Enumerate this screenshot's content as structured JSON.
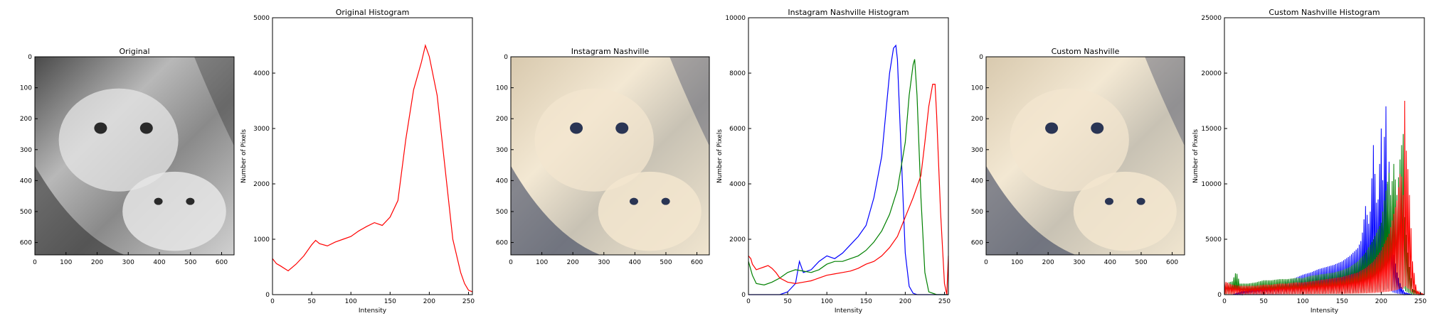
{
  "colors": {
    "blue": "#0000ff",
    "green": "#008000",
    "red": "#ff0000",
    "gray": "#bbbbbb",
    "dark": "#2a2a2a",
    "sepia_light": "#f3e6cf",
    "sepia_dark": "#2a3554"
  },
  "panels": [
    {
      "kind": "image",
      "title": "Original",
      "tone": "gray",
      "xticks": [
        "0",
        "100",
        "200",
        "300",
        "400",
        "500",
        "600"
      ],
      "yticks": [
        "0",
        "100",
        "200",
        "300",
        "400",
        "500",
        "600"
      ]
    },
    {
      "kind": "chart",
      "chart_ref": 0
    },
    {
      "kind": "image",
      "title": "Instagram Nashville",
      "tone": "sepia",
      "xticks": [
        "0",
        "100",
        "200",
        "300",
        "400",
        "500",
        "600"
      ],
      "yticks": [
        "0",
        "100",
        "200",
        "300",
        "400",
        "500",
        "600"
      ]
    },
    {
      "kind": "chart",
      "chart_ref": 1
    },
    {
      "kind": "image",
      "title": "Custom Nashville",
      "tone": "sepia",
      "xticks": [
        "0",
        "100",
        "200",
        "300",
        "400",
        "500",
        "600"
      ],
      "yticks": [
        "0",
        "100",
        "200",
        "300",
        "400",
        "500",
        "600"
      ]
    },
    {
      "kind": "chart",
      "chart_ref": 2
    }
  ],
  "chart_data": [
    {
      "type": "line",
      "title": "Original Histogram",
      "xlabel": "Intensity",
      "ylabel": "Number of Pixels",
      "xlim": [
        0,
        255
      ],
      "ylim": [
        0,
        5000
      ],
      "xticks": [
        0,
        50,
        100,
        150,
        200,
        250
      ],
      "yticks": [
        0,
        1000,
        2000,
        3000,
        4000,
        5000
      ],
      "series": [
        {
          "color": "red",
          "x": [
            0,
            5,
            10,
            20,
            30,
            40,
            50,
            55,
            60,
            70,
            80,
            90,
            100,
            110,
            120,
            130,
            140,
            150,
            160,
            170,
            180,
            190,
            195,
            200,
            210,
            220,
            230,
            240,
            245,
            250,
            255
          ],
          "y": [
            650,
            560,
            520,
            430,
            550,
            700,
            900,
            980,
            920,
            880,
            950,
            1000,
            1050,
            1150,
            1230,
            1300,
            1250,
            1400,
            1700,
            2800,
            3700,
            4200,
            4500,
            4300,
            3600,
            2300,
            1000,
            400,
            200,
            80,
            50
          ]
        }
      ]
    },
    {
      "type": "line",
      "title": "Instagram Nashville Histogram",
      "xlabel": "Intensity",
      "ylabel": "Number of Pixels",
      "xlim": [
        0,
        255
      ],
      "ylim": [
        0,
        10000
      ],
      "xticks": [
        0,
        50,
        100,
        150,
        200,
        250
      ],
      "yticks": [
        0,
        2000,
        4000,
        6000,
        8000,
        10000
      ],
      "series": [
        {
          "color": "blue",
          "x": [
            0,
            40,
            50,
            60,
            65,
            70,
            80,
            90,
            100,
            110,
            120,
            130,
            140,
            150,
            160,
            170,
            175,
            180,
            185,
            188,
            190,
            195,
            200,
            205,
            210,
            215,
            255
          ],
          "y": [
            0,
            0,
            100,
            400,
            1200,
            800,
            900,
            1200,
            1400,
            1300,
            1500,
            1800,
            2100,
            2500,
            3500,
            5000,
            6500,
            8000,
            8900,
            9000,
            8500,
            5000,
            1500,
            300,
            50,
            0,
            0
          ]
        },
        {
          "color": "green",
          "x": [
            0,
            5,
            10,
            20,
            30,
            40,
            50,
            60,
            70,
            80,
            90,
            100,
            110,
            120,
            130,
            140,
            150,
            160,
            170,
            180,
            190,
            200,
            205,
            210,
            212,
            215,
            220,
            225,
            230,
            240,
            255
          ],
          "y": [
            1200,
            700,
            400,
            350,
            450,
            600,
            800,
            900,
            850,
            800,
            900,
            1100,
            1200,
            1200,
            1300,
            1400,
            1600,
            1900,
            2300,
            2900,
            3800,
            5500,
            7200,
            8300,
            8500,
            7200,
            3500,
            800,
            100,
            0,
            0
          ]
        },
        {
          "color": "red",
          "x": [
            0,
            3,
            5,
            10,
            15,
            20,
            25,
            30,
            35,
            40,
            50,
            60,
            70,
            80,
            90,
            100,
            110,
            120,
            130,
            140,
            150,
            160,
            170,
            180,
            190,
            200,
            210,
            220,
            225,
            230,
            235,
            238,
            240,
            245,
            250,
            253,
            255
          ],
          "y": [
            1400,
            1300,
            1100,
            900,
            950,
            1000,
            1050,
            950,
            800,
            600,
            450,
            400,
            450,
            500,
            600,
            700,
            750,
            800,
            850,
            950,
            1100,
            1200,
            1400,
            1700,
            2100,
            2800,
            3500,
            4300,
            5500,
            6800,
            7600,
            7600,
            6500,
            3000,
            400,
            0,
            1400
          ]
        }
      ]
    },
    {
      "type": "bar",
      "title": "Custom Nashville Histogram",
      "xlabel": "Intensity",
      "ylabel": "Number of Pixels",
      "xlim": [
        0,
        255
      ],
      "ylim": [
        0,
        25000
      ],
      "xticks": [
        0,
        50,
        100,
        150,
        200,
        250
      ],
      "yticks": [
        0,
        5000,
        10000,
        15000,
        20000,
        25000
      ],
      "series": [
        {
          "color": "blue",
          "x": [
            0,
            10,
            20,
            30,
            40,
            50,
            60,
            70,
            80,
            90,
            100,
            110,
            120,
            130,
            140,
            150,
            160,
            170,
            175,
            180,
            185,
            190,
            195,
            200,
            203,
            205,
            208,
            210,
            213,
            215,
            220,
            225,
            230,
            240,
            255
          ],
          "y": [
            0,
            0,
            200,
            400,
            600,
            700,
            900,
            1100,
            1300,
            1500,
            1800,
            2000,
            2300,
            2500,
            2700,
            3000,
            3500,
            4200,
            5000,
            8000,
            6000,
            13500,
            7000,
            15000,
            8000,
            20500,
            10000,
            12000,
            6000,
            4000,
            2000,
            800,
            200,
            0,
            0
          ]
        },
        {
          "color": "green",
          "x": [
            0,
            10,
            15,
            20,
            30,
            40,
            50,
            60,
            70,
            80,
            90,
            100,
            110,
            120,
            130,
            140,
            150,
            160,
            170,
            180,
            190,
            200,
            205,
            210,
            213,
            215,
            220,
            225,
            228,
            230,
            235,
            240,
            255
          ],
          "y": [
            1000,
            1200,
            2100,
            1000,
            1000,
            1100,
            1300,
            1300,
            1400,
            1400,
            1500,
            1500,
            1700,
            1800,
            1900,
            2000,
            2200,
            2500,
            3000,
            3800,
            5000,
            6500,
            9000,
            11000,
            8000,
            12500,
            9000,
            13000,
            14500,
            7000,
            3000,
            500,
            0
          ]
        },
        {
          "color": "red",
          "x": [
            0,
            10,
            20,
            30,
            40,
            50,
            60,
            70,
            80,
            90,
            100,
            110,
            120,
            130,
            140,
            150,
            160,
            170,
            180,
            190,
            200,
            210,
            215,
            220,
            225,
            228,
            230,
            232,
            235,
            238,
            240,
            245,
            255
          ],
          "y": [
            1200,
            900,
            800,
            800,
            800,
            900,
            900,
            1000,
            1000,
            1100,
            1100,
            1200,
            1300,
            1400,
            1500,
            1600,
            1800,
            2000,
            2400,
            3000,
            4000,
            5500,
            7000,
            8500,
            11500,
            9000,
            17500,
            13000,
            10500,
            6000,
            3000,
            400,
            0
          ]
        }
      ]
    }
  ]
}
